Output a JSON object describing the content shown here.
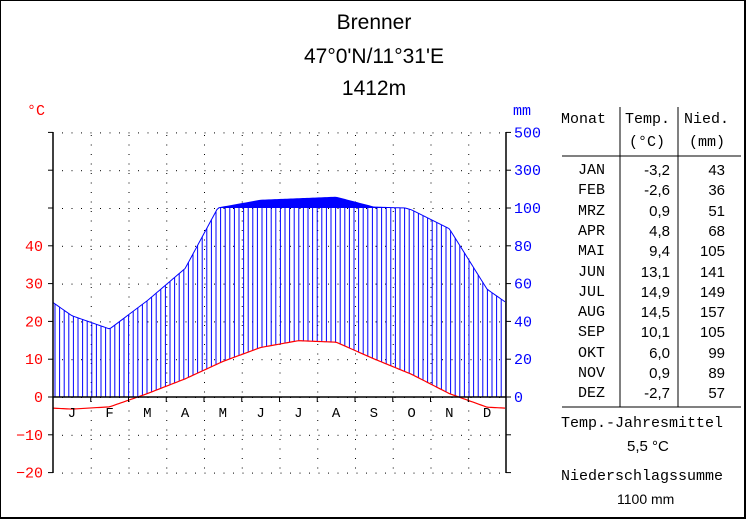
{
  "header": {
    "station": "Brenner",
    "coordinates": "47°0'N/11°31'E",
    "elevation": "1412m"
  },
  "axes": {
    "left_unit": "°C",
    "right_unit": "mm",
    "left_ticks": [
      "40",
      "30",
      "20",
      "10",
      "0",
      "−10",
      "−20"
    ],
    "right_ticks": [
      "500",
      "300",
      "100",
      "80",
      "60",
      "40",
      "20",
      "0"
    ],
    "month_letters": [
      "J",
      "F",
      "M",
      "A",
      "M",
      "J",
      "J",
      "A",
      "S",
      "O",
      "N",
      "D"
    ]
  },
  "table": {
    "col_month": "Monat",
    "col_temp": "Temp.",
    "col_temp_unit": "(°C)",
    "col_prec": "Nied.",
    "col_prec_unit": "(mm)",
    "rows": [
      {
        "month": "JAN",
        "temp": "-3,2",
        "prec": "43"
      },
      {
        "month": "FEB",
        "temp": "-2,6",
        "prec": "36"
      },
      {
        "month": "MRZ",
        "temp": "0,9",
        "prec": "51"
      },
      {
        "month": "APR",
        "temp": "4,8",
        "prec": "68"
      },
      {
        "month": "MAI",
        "temp": "9,4",
        "prec": "105"
      },
      {
        "month": "JUN",
        "temp": "13,1",
        "prec": "141"
      },
      {
        "month": "JUL",
        "temp": "14,9",
        "prec": "149"
      },
      {
        "month": "AUG",
        "temp": "14,5",
        "prec": "157"
      },
      {
        "month": "SEP",
        "temp": "10,1",
        "prec": "105"
      },
      {
        "month": "OKT",
        "temp": "6,0",
        "prec": "99"
      },
      {
        "month": "NOV",
        "temp": "0,9",
        "prec": "89"
      },
      {
        "month": "DEZ",
        "temp": "-2,7",
        "prec": "57"
      }
    ],
    "annual_temp_label": "Temp.-Jahresmittel",
    "annual_temp_value": "5,5 °C",
    "annual_prec_label": "Niederschlagssumme",
    "annual_prec_value": "1100 mm"
  },
  "colors": {
    "temperature": "#ff0000",
    "precipitation": "#0000ff",
    "axis": "#000000"
  },
  "chart_data": {
    "type": "line",
    "title": "Brenner 47°0'N/11°31'E 1412m",
    "categories": [
      "JAN",
      "FEB",
      "MRZ",
      "APR",
      "MAI",
      "JUN",
      "JUL",
      "AUG",
      "SEP",
      "OKT",
      "NOV",
      "DEZ"
    ],
    "series": [
      {
        "name": "Temp. (°C)",
        "axis": "left",
        "values": [
          -3.2,
          -2.6,
          0.9,
          4.8,
          9.4,
          13.1,
          14.9,
          14.5,
          10.1,
          6.0,
          0.9,
          -2.7
        ]
      },
      {
        "name": "Nied. (mm)",
        "axis": "right",
        "values": [
          43,
          36,
          51,
          68,
          105,
          141,
          149,
          157,
          105,
          99,
          89,
          57
        ]
      }
    ],
    "xlabel": "",
    "ylabel_left": "°C",
    "ylabel_right": "mm",
    "ylim_left": [
      -20,
      50
    ],
    "ylim_right": [
      0,
      500
    ],
    "right_axis_note": "20 mm per 10 °C up to 100 mm, then 200 mm per step (100, 300, 500)",
    "annual_mean_temp": 5.5,
    "annual_precip_sum": 1100,
    "grid": "dotted"
  }
}
